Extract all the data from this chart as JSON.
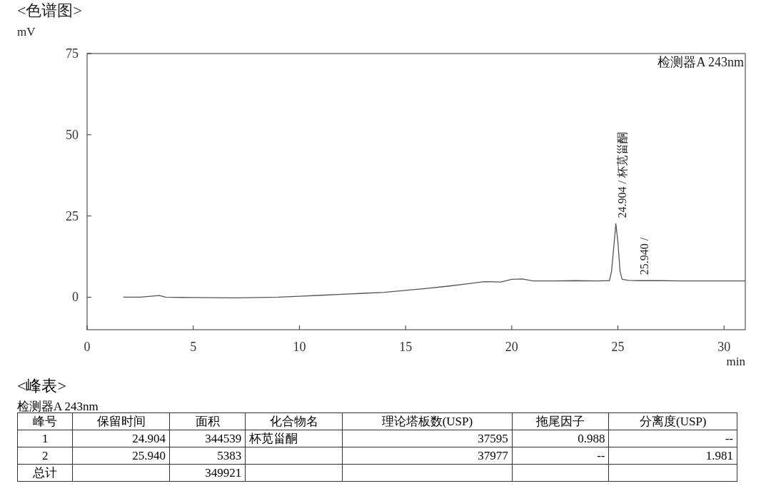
{
  "chart_data": [
    {
      "type": "line",
      "title": "<色谱图>",
      "ylabel": "mV",
      "xlabel": "min",
      "xlim": [
        0,
        31
      ],
      "ylim": [
        -10,
        75
      ],
      "xticks": [
        0,
        5,
        10,
        15,
        20,
        25,
        30
      ],
      "yticks": [
        0,
        25,
        50,
        75
      ],
      "grid": false,
      "marker": "none",
      "line_style": "solid",
      "series": [
        {
          "color": "#555555",
          "x": [
            1.7,
            2.5,
            3.2,
            3.4,
            3.7,
            5,
            7,
            9,
            10,
            11,
            12,
            13,
            14,
            15,
            16,
            17,
            18,
            18.7,
            19.5,
            20,
            20.5,
            21,
            22,
            23,
            24,
            24.6,
            24.7,
            24.8,
            24.904,
            25.0,
            25.1,
            25.2,
            25.5,
            26,
            27,
            28,
            29,
            30,
            31
          ],
          "values": [
            0,
            0,
            0.4,
            0.5,
            0,
            -0.1,
            -0.2,
            0,
            0.3,
            0.6,
            0.9,
            1.2,
            1.5,
            2.1,
            2.7,
            3.4,
            4.2,
            4.8,
            4.7,
            5.5,
            5.6,
            5.0,
            5.0,
            5.1,
            5.0,
            5.1,
            8,
            15,
            22.6,
            17,
            8,
            5.5,
            5.2,
            5.1,
            5.1,
            5.0,
            5.0,
            5.0,
            5.0
          ]
        }
      ],
      "annotations": [
        "检测器A 243nm",
        {
          "text": "24.904 / 杯苋甾酮",
          "x": 24.904,
          "y": 22.6
        },
        {
          "text": "25.940 /",
          "x": 25.94,
          "y": 5.1
        }
      ]
    },
    {
      "type": "other",
      "title": "<峰表>",
      "subtitle": "检测器A 243nm",
      "categories": [
        "峰号",
        "保留时间",
        "面积",
        "化合物名",
        "理论塔板数(USP)",
        "拖尾因子",
        "分离度(USP)"
      ],
      "cell_labels": [
        [
          "1",
          "24.904",
          "344539",
          "杯苋甾酮",
          "37595",
          "0.988",
          "--"
        ],
        [
          "2",
          "25.940",
          "5383",
          null,
          "37977",
          "--",
          "1.981"
        ],
        [
          "总计",
          null,
          "349921",
          null,
          null,
          null,
          null
        ]
      ]
    }
  ]
}
